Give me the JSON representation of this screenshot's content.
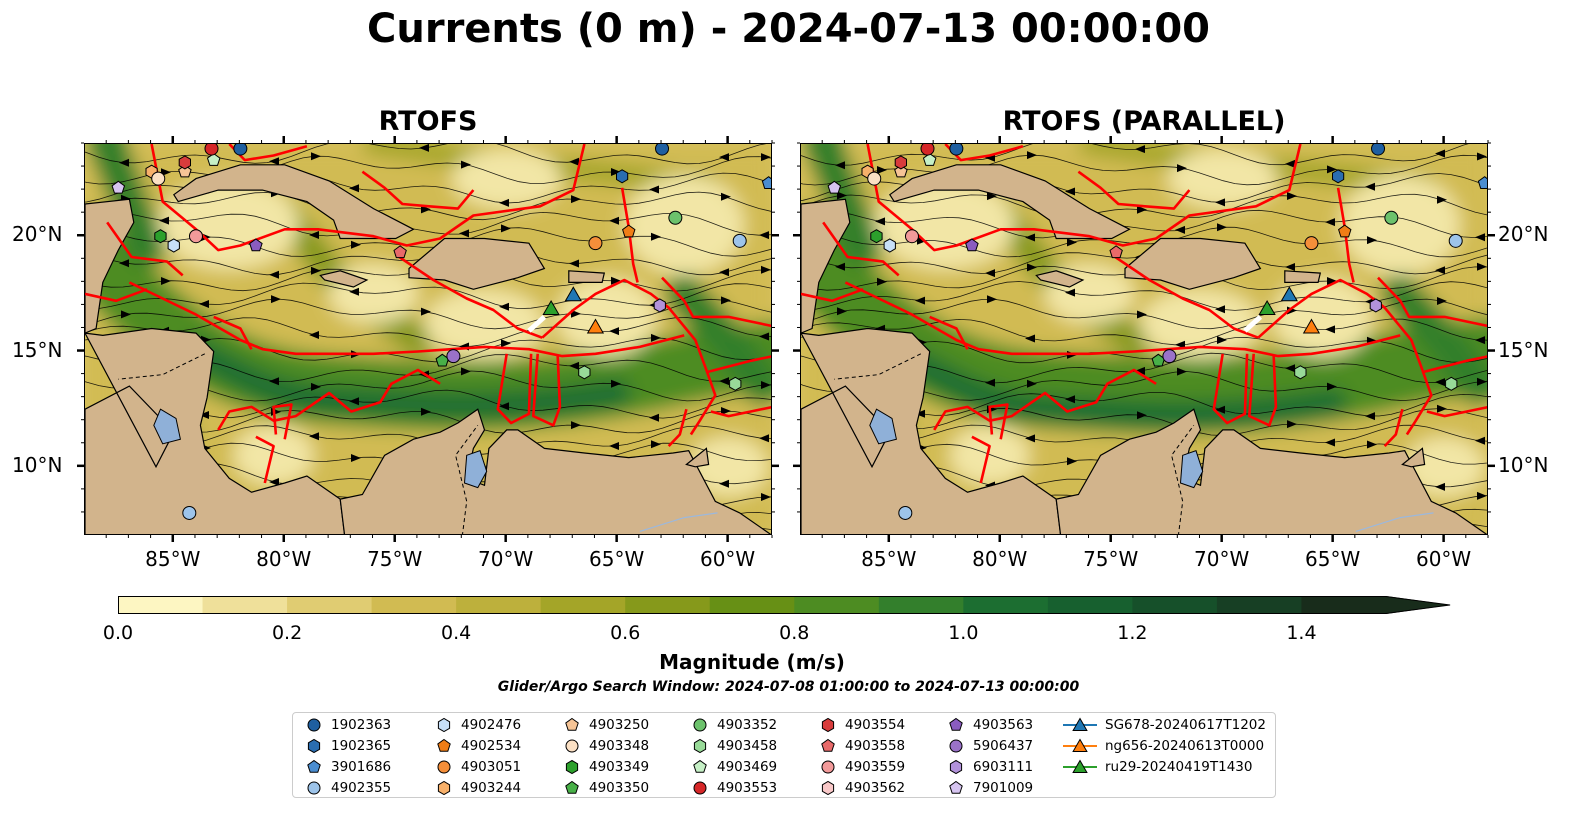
{
  "title": "Currents (0 m) - 2024-07-13 00:00:00",
  "panels": {
    "left": {
      "title": "RTOFS"
    },
    "right": {
      "title": "RTOFS (PARALLEL)"
    }
  },
  "map": {
    "lon_range": [
      -89,
      -58
    ],
    "lat_range": [
      7,
      24
    ],
    "lon_ticks": [
      "85°W",
      "80°W",
      "75°W",
      "70°W",
      "65°W",
      "60°W"
    ],
    "lat_ticks": [
      "10°N",
      "15°N",
      "20°N"
    ],
    "land_color": "#d2b48c",
    "eez_line_color": "#ff0000",
    "lake_color": "#8fb0d8"
  },
  "colorbar": {
    "label": "Magnitude (m/s)",
    "ticks": [
      "0.0",
      "0.2",
      "0.4",
      "0.6",
      "0.8",
      "1.0",
      "1.2",
      "1.4"
    ],
    "range": [
      0,
      1.5
    ],
    "extend": "max",
    "colors": [
      "#fdf6c2",
      "#efe09a",
      "#e0cc72",
      "#d1bb52",
      "#bdb03c",
      "#a4a528",
      "#86991b",
      "#679015",
      "#4d8c22",
      "#337f2c",
      "#1c6e31",
      "#17602f",
      "#16502a",
      "#173f24",
      "#182c1b"
    ]
  },
  "search_window": "Glider/Argo Search Window: 2024-07-08 01:00:00 to 2024-07-13 00:00:00",
  "legend": [
    {
      "label": "1902363",
      "marker": "circle",
      "color": "#1f5fa0"
    },
    {
      "label": "1902365",
      "marker": "hexagon",
      "color": "#2a6db0"
    },
    {
      "label": "3901686",
      "marker": "pentagon",
      "color": "#4a8dd0"
    },
    {
      "label": "4902355",
      "marker": "circle",
      "color": "#9dc4ea"
    },
    {
      "label": "4902476",
      "marker": "hexagon",
      "color": "#c8e0f8"
    },
    {
      "label": "4902534",
      "marker": "pentagon",
      "color": "#f07d16"
    },
    {
      "label": "4903051",
      "marker": "circle",
      "color": "#f58f3a"
    },
    {
      "label": "4903244",
      "marker": "hexagon",
      "color": "#f7b06a"
    },
    {
      "label": "4903250",
      "marker": "pentagon",
      "color": "#f6c496"
    },
    {
      "label": "4903348",
      "marker": "circle",
      "color": "#fbe0c4"
    },
    {
      "label": "4903349",
      "marker": "hexagon",
      "color": "#2ca02c"
    },
    {
      "label": "4903350",
      "marker": "pentagon",
      "color": "#48b048"
    },
    {
      "label": "4903352",
      "marker": "circle",
      "color": "#6cc26c"
    },
    {
      "label": "4903458",
      "marker": "hexagon",
      "color": "#98da98"
    },
    {
      "label": "4903469",
      "marker": "pentagon",
      "color": "#c6f0c6"
    },
    {
      "label": "4903553",
      "marker": "circle",
      "color": "#d62728"
    },
    {
      "label": "4903554",
      "marker": "hexagon",
      "color": "#d83c3c"
    },
    {
      "label": "4903558",
      "marker": "pentagon",
      "color": "#e86a6a"
    },
    {
      "label": "4903559",
      "marker": "circle",
      "color": "#f29a9a"
    },
    {
      "label": "4903562",
      "marker": "hexagon",
      "color": "#f9c8c8"
    },
    {
      "label": "4903563",
      "marker": "pentagon",
      "color": "#8a5cc0"
    },
    {
      "label": "5906437",
      "marker": "circle",
      "color": "#9a72c8"
    },
    {
      "label": "6903111",
      "marker": "hexagon",
      "color": "#b292da"
    },
    {
      "label": "7901009",
      "marker": "pentagon",
      "color": "#d6c4f0"
    },
    {
      "label": "SG678-20240617T1202",
      "marker": "triangle-line",
      "color": "#1f77b4"
    },
    {
      "label": "ng656-20240613T0000",
      "marker": "triangle-line",
      "color": "#ff7f0e"
    },
    {
      "label": "ru29-20240419T1430",
      "marker": "triangle-line",
      "color": "#2ca02c"
    }
  ]
}
